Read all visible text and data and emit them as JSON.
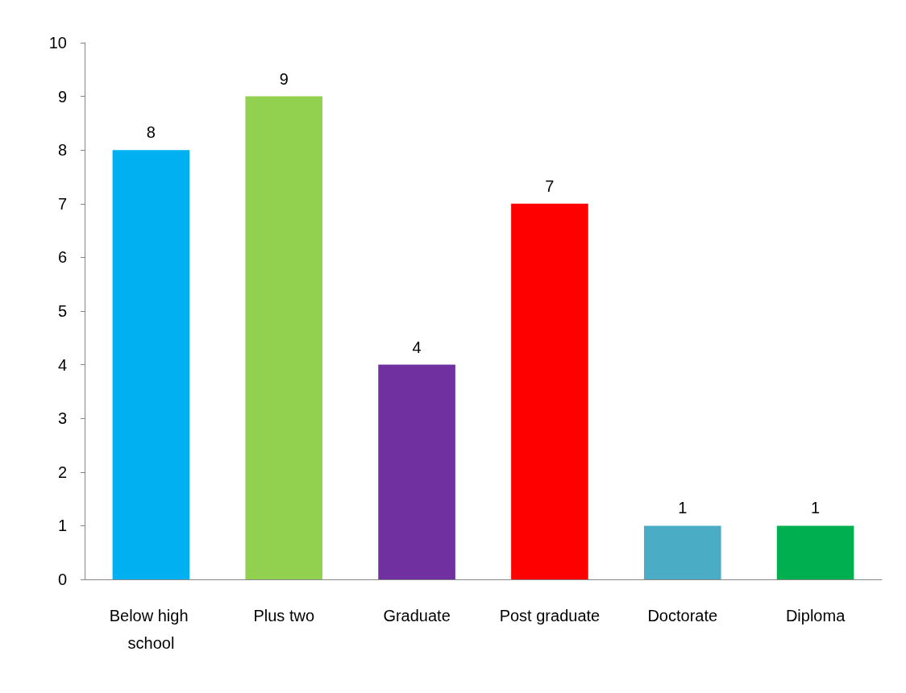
{
  "chart_data": {
    "type": "bar",
    "categories": [
      "Below high school",
      "Plus two",
      "Graduate",
      "Post graduate",
      "Doctorate",
      "Diploma"
    ],
    "values": [
      8,
      9,
      4,
      7,
      1,
      1
    ],
    "colors": [
      "#00b0f0",
      "#92d050",
      "#7030a0",
      "#ff0000",
      "#4bacc6",
      "#00b050"
    ],
    "ylim": [
      0,
      10
    ],
    "yticks": [
      0,
      1,
      2,
      3,
      4,
      5,
      6,
      7,
      8,
      9,
      10
    ],
    "grid": false,
    "data_labels": true
  }
}
